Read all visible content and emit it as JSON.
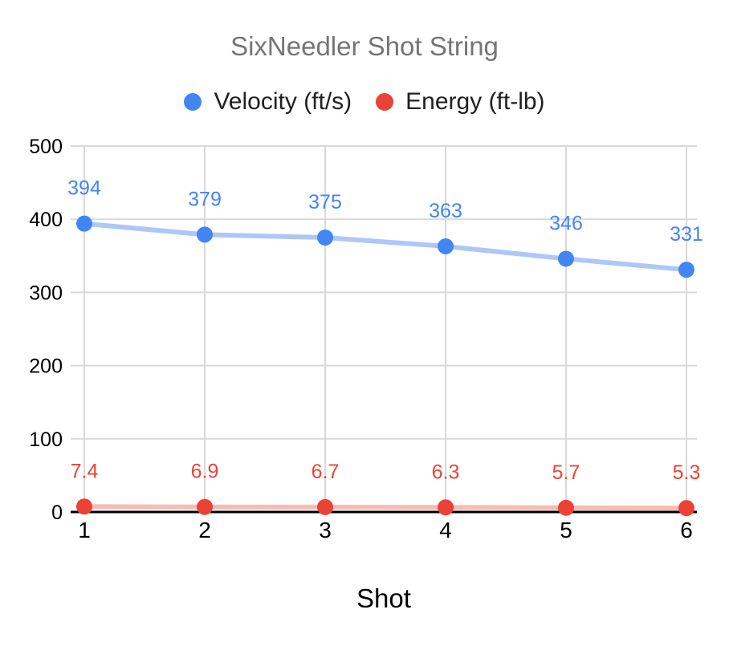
{
  "chart": {
    "title": "SixNeedler Shot String",
    "legend": [
      {
        "label": "Velocity (ft/s)",
        "color": "#4285f4"
      },
      {
        "label": "Energy (ft-lb)",
        "color": "#ea4335"
      }
    ]
  },
  "chart_data": {
    "type": "line",
    "title": "SixNeedler Shot String",
    "xlabel": "Shot",
    "ylabel": "",
    "x": [
      1,
      2,
      3,
      4,
      5,
      6
    ],
    "x_tick_labels": [
      "1",
      "2",
      "3",
      "4",
      "5",
      "6"
    ],
    "series": [
      {
        "name": "Velocity (ft/s)",
        "slug": "velocity",
        "values": [
          394,
          379,
          375,
          363,
          346,
          331
        ],
        "labels": [
          "394",
          "379",
          "375",
          "363",
          "346",
          "331"
        ],
        "point_color": "#4285f4",
        "line_color": "#adc8f7",
        "label_color": "#4285f4"
      },
      {
        "name": "Energy (ft-lb)",
        "slug": "energy",
        "values": [
          7.4,
          6.9,
          6.7,
          6.3,
          5.7,
          5.3
        ],
        "labels": [
          "7.4",
          "6.9",
          "6.7",
          "6.3",
          "5.7",
          "5.3"
        ],
        "point_color": "#ea4335",
        "line_color": "#f7bcb5",
        "label_color": "#ea4335"
      }
    ],
    "ylim": [
      0,
      500
    ],
    "yticks": [
      0,
      100,
      200,
      300,
      400,
      500
    ],
    "grid": true,
    "data_labels": true,
    "legend_position": "top",
    "colors": {
      "grid": "#d9d9d9",
      "axis": "#000000",
      "tick_label": "#000000",
      "title": "#757575"
    }
  }
}
